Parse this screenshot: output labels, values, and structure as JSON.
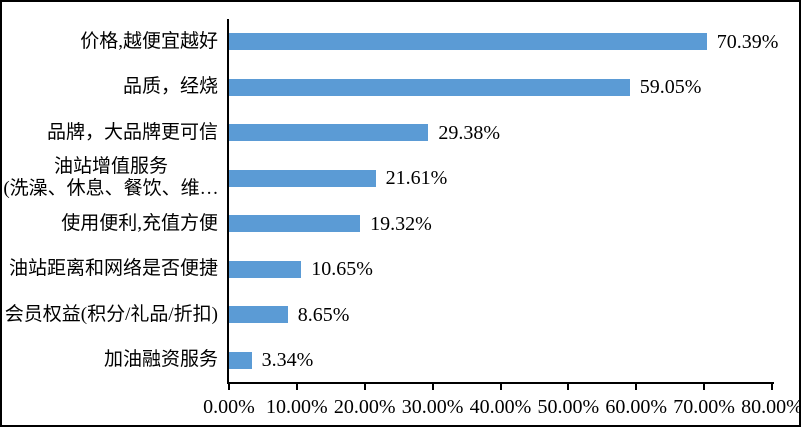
{
  "chart_data": {
    "type": "bar",
    "orientation": "horizontal",
    "title": "",
    "xlabel": "",
    "ylabel": "",
    "grid": false,
    "legend": false,
    "xlim": [
      0,
      80
    ],
    "x_tick_step": 10,
    "x_tick_labels": [
      "0.00%",
      "10.00%",
      "20.00%",
      "30.00%",
      "40.00%",
      "50.00%",
      "60.00%",
      "70.00%",
      "80.00%"
    ],
    "categories": [
      [
        "价格,越便宜越好"
      ],
      [
        "品质，经烧"
      ],
      [
        "品牌，大品牌更可信"
      ],
      [
        "油站增值服务",
        "(洗澡、休息、餐饮、维…"
      ],
      [
        "使用便利,充值方便"
      ],
      [
        "油站距离和网络是否便捷"
      ],
      [
        "会员权益(积分/礼品/折扣)"
      ],
      [
        "加油融资服务"
      ]
    ],
    "values": [
      70.39,
      59.05,
      29.38,
      21.61,
      19.32,
      10.65,
      8.65,
      3.34
    ],
    "data_labels": [
      "70.39%",
      "59.05%",
      "29.38%",
      "21.61%",
      "19.32%",
      "10.65%",
      "8.65%",
      "3.34%"
    ],
    "bar_color": "#5B9BD5",
    "axis_color": "#000000",
    "text_color": "#000000",
    "background_color": "#FFFFFF",
    "border_color": "#000000"
  }
}
